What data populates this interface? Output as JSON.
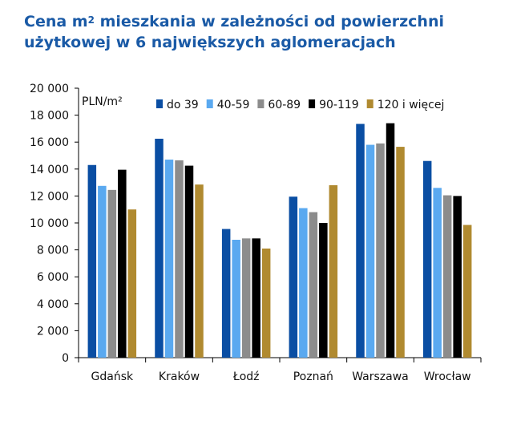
{
  "title": {
    "line1_pre": "Cena m",
    "line1_sup": "2",
    "line1_post": " mieszkania w zależności od powierzchni",
    "line2": "użytkowej w 6 największych aglomeracjach"
  },
  "chart_data": {
    "type": "bar",
    "unit_label": "PLN/m²",
    "categories": [
      "Gdańsk",
      "Kraków",
      "Łodź",
      "Poznań",
      "Warszawa",
      "Wrocław"
    ],
    "ylim": [
      0,
      20000
    ],
    "yticks": [
      0,
      2000,
      4000,
      6000,
      8000,
      10000,
      12000,
      14000,
      16000,
      18000,
      20000
    ],
    "ytick_labels": [
      "0",
      "2 000",
      "4 000",
      "6 000",
      "8 000",
      "10 000",
      "12 000",
      "14 000",
      "16 000",
      "18 000",
      "20 000"
    ],
    "grid": false,
    "legend_position": "top",
    "series": [
      {
        "name": "do 39",
        "color": "#0a4ea3",
        "values": [
          14300,
          16250,
          9550,
          11950,
          17350,
          14600
        ]
      },
      {
        "name": "40-59",
        "color": "#5aa9f0",
        "values": [
          12750,
          14700,
          8750,
          11100,
          15800,
          12600
        ]
      },
      {
        "name": "60-89",
        "color": "#8c8c8c",
        "values": [
          12450,
          14650,
          8850,
          10800,
          15900,
          12050
        ]
      },
      {
        "name": "90-119",
        "color": "#000000",
        "values": [
          13950,
          14250,
          8850,
          10000,
          17400,
          12000
        ]
      },
      {
        "name": "120 i więcej",
        "color": "#b08a30",
        "values": [
          11000,
          12850,
          8100,
          12800,
          15650,
          9850
        ]
      }
    ]
  }
}
